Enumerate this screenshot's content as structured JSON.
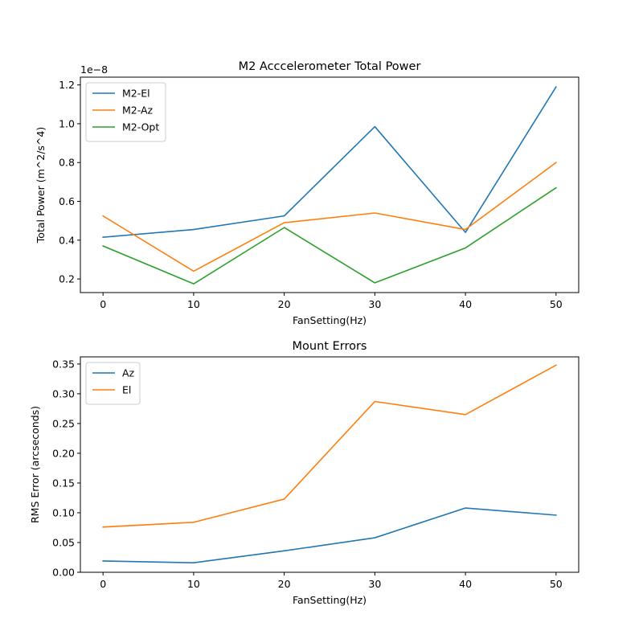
{
  "chart_data": [
    {
      "type": "line",
      "title": "M2 Acccelerometer Total Power",
      "xlabel": "FanSetting(Hz)",
      "ylabel": "Total Power (m^2/s^4)",
      "offset_text": "1e−8",
      "x": [
        0,
        10,
        20,
        30,
        40,
        50
      ],
      "xlim": [
        -2.5,
        52.5
      ],
      "xticks": [
        0,
        10,
        20,
        30,
        40,
        50
      ],
      "ylim": [
        0.13,
        1.24
      ],
      "yticks": [
        0.2,
        0.4,
        0.6,
        0.8,
        1.0,
        1.2
      ],
      "ytick_labels": [
        "0.2",
        "0.4",
        "0.6",
        "0.8",
        "1.0",
        "1.2"
      ],
      "y_scale_note": "values × 1e-8",
      "legend_position": "top-left",
      "grid": false,
      "series": [
        {
          "name": "M2-El",
          "color": "#1f77b4",
          "values": [
            0.415,
            0.455,
            0.525,
            0.985,
            0.44,
            1.19
          ]
        },
        {
          "name": "M2-Az",
          "color": "#ff7f0e",
          "values": [
            0.525,
            0.24,
            0.49,
            0.54,
            0.455,
            0.8
          ]
        },
        {
          "name": "M2-Opt",
          "color": "#2ca02c",
          "values": [
            0.37,
            0.175,
            0.465,
            0.18,
            0.36,
            0.67
          ]
        }
      ]
    },
    {
      "type": "line",
      "title": "Mount Errors",
      "xlabel": "FanSetting(Hz)",
      "ylabel": "RMS Error (arcseconds)",
      "x": [
        0,
        10,
        20,
        30,
        40,
        50
      ],
      "xlim": [
        -2.5,
        52.5
      ],
      "xticks": [
        0,
        10,
        20,
        30,
        40,
        50
      ],
      "ylim": [
        0.0,
        0.362
      ],
      "yticks": [
        0.0,
        0.05,
        0.1,
        0.15,
        0.2,
        0.25,
        0.3,
        0.35
      ],
      "ytick_labels": [
        "0.00",
        "0.05",
        "0.10",
        "0.15",
        "0.20",
        "0.25",
        "0.30",
        "0.35"
      ],
      "legend_position": "top-left",
      "grid": false,
      "series": [
        {
          "name": "Az",
          "color": "#1f77b4",
          "values": [
            0.019,
            0.016,
            0.036,
            0.058,
            0.108,
            0.096
          ]
        },
        {
          "name": "El",
          "color": "#ff7f0e",
          "values": [
            0.076,
            0.084,
            0.123,
            0.287,
            0.265,
            0.348
          ]
        }
      ]
    }
  ]
}
